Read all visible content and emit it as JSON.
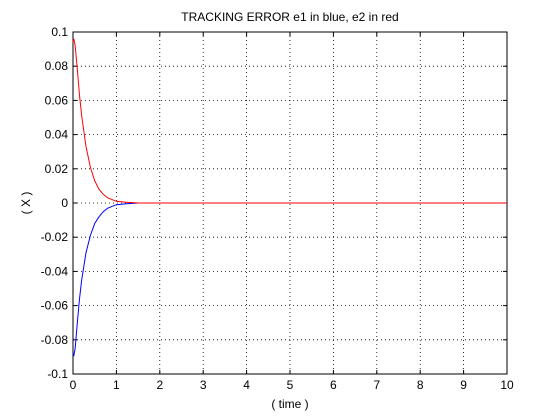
{
  "chart_data": {
    "type": "line",
    "title": "TRACKING ERROR e1 in blue, e2 in red",
    "xlabel": "( time )",
    "ylabel": "( X )",
    "xlim": [
      0,
      10
    ],
    "ylim": [
      -0.1,
      0.1
    ],
    "grid": true,
    "x_ticks": [
      0,
      1,
      2,
      3,
      4,
      5,
      6,
      7,
      8,
      9,
      10
    ],
    "y_ticks": [
      0.1,
      0.08,
      0.06,
      0.04,
      0.02,
      0,
      -0.02,
      -0.04,
      -0.06,
      -0.08,
      -0.1
    ],
    "series": [
      {
        "color": "#0000ff",
        "x": [
          0,
          0.02,
          0.05,
          0.1,
          0.15,
          0.2,
          0.3,
          0.4,
          0.5,
          0.6,
          0.7,
          0.8,
          0.9,
          1.0,
          1.2,
          1.5,
          2,
          3,
          4,
          5,
          6,
          7,
          8,
          9,
          10
        ],
        "y": [
          -0.088,
          -0.089,
          -0.085,
          -0.07,
          -0.056,
          -0.045,
          -0.029,
          -0.019,
          -0.012,
          -0.008,
          -0.005,
          -0.003,
          -0.002,
          -0.001,
          -0.0005,
          0,
          0,
          0,
          0,
          0,
          0,
          0,
          0,
          0,
          0
        ]
      },
      {
        "color": "#ff0000",
        "x": [
          0,
          0.02,
          0.05,
          0.1,
          0.15,
          0.2,
          0.3,
          0.4,
          0.5,
          0.6,
          0.7,
          0.8,
          0.9,
          1.0,
          1.2,
          1.5,
          2,
          3,
          4,
          5,
          6,
          7,
          8,
          9,
          10
        ],
        "y": [
          0.094,
          0.096,
          0.092,
          0.078,
          0.063,
          0.051,
          0.033,
          0.021,
          0.013,
          0.008,
          0.005,
          0.003,
          0.002,
          0.001,
          0.0005,
          0,
          0,
          0,
          0,
          0,
          0,
          0,
          0,
          0,
          0
        ]
      }
    ]
  }
}
